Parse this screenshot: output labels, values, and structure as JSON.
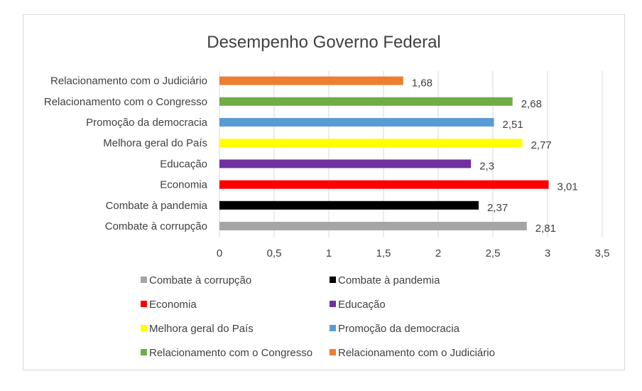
{
  "chart_data": {
    "type": "bar",
    "orientation": "horizontal",
    "title": "Desempenho Governo Federal",
    "categories": [
      "Relacionamento com o Judiciário",
      "Relacionamento com o Congresso",
      "Promoção da democracia",
      "Melhora geral  do País",
      "Educação",
      "Economia",
      "Combate à pandemia",
      "Combate à corrupção"
    ],
    "values": [
      1.68,
      2.68,
      2.51,
      2.77,
      2.3,
      3.01,
      2.37,
      2.81
    ],
    "value_labels": [
      "1,68",
      "2,68",
      "2,51",
      "2,77",
      "2,3",
      "3,01",
      "2,37",
      "2,81"
    ],
    "colors": [
      "#ED7D31",
      "#70AD47",
      "#5B9BD5",
      "#FFFF00",
      "#7030A0",
      "#FF0000",
      "#000000",
      "#A5A5A5"
    ],
    "xlim": [
      0,
      3.5
    ],
    "xticks": [
      "0",
      "0,5",
      "1",
      "1,5",
      "2",
      "2,5",
      "3",
      "3,5"
    ],
    "grid": true,
    "legend_position": "bottom",
    "legend": [
      {
        "label": "Combate à corrupção",
        "color": "#A5A5A5"
      },
      {
        "label": "Combate à pandemia",
        "color": "#000000"
      },
      {
        "label": "Economia",
        "color": "#FF0000"
      },
      {
        "label": "Educação",
        "color": "#7030A0"
      },
      {
        "label": "Melhora geral  do País",
        "color": "#FFFF00"
      },
      {
        "label": "Promoção da democracia",
        "color": "#5B9BD5"
      },
      {
        "label": "Relacionamento com o Congresso",
        "color": "#70AD47"
      },
      {
        "label": "Relacionamento com o Judiciário",
        "color": "#ED7D31"
      }
    ]
  }
}
